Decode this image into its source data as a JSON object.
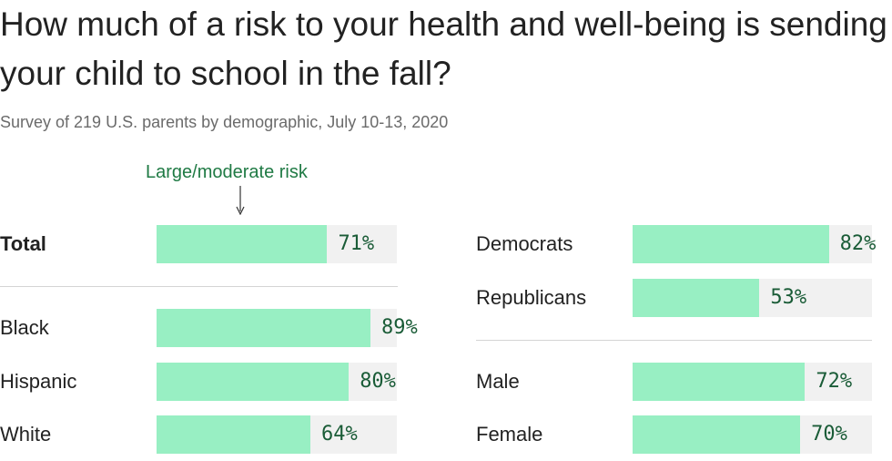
{
  "title": "How much of a risk to your health and well-being is sending your child to school in the fall?",
  "subtitle": "Survey of 219 U.S. parents by demographic, July 10-13, 2020",
  "annotation": "Large/moderate risk",
  "colors": {
    "bar": "#98efc3",
    "track": "#f1f1f1",
    "value_text": "#1a5c37",
    "annotation": "#1f7a44"
  },
  "chart_data": {
    "type": "bar",
    "orientation": "horizontal",
    "title": "How much of a risk to your health and well-being is sending your child to school in the fall?",
    "subtitle": "Survey of 219 U.S. parents by demographic, July 10-13, 2020",
    "annotation": "Large/moderate risk",
    "unit": "%",
    "xlim": [
      0,
      100
    ],
    "categories": [
      "Total",
      "Black",
      "Hispanic",
      "White",
      "Democrats",
      "Republicans",
      "Male",
      "Female"
    ],
    "values": [
      71,
      89,
      80,
      64,
      82,
      53,
      72,
      70
    ],
    "labels": [
      "71%",
      "89%",
      "80%",
      "64%",
      "82%",
      "53%",
      "72%",
      "70%"
    ]
  }
}
